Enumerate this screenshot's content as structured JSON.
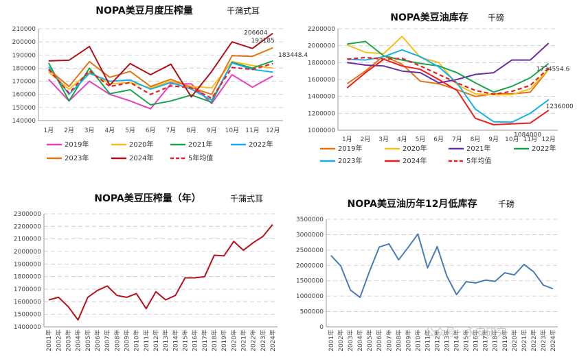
{
  "colors": {
    "y2019": "#e83ebf",
    "y2020": "#f7be1a",
    "y2021": "#1aa44a",
    "y2022": "#16b0e6",
    "y2023": "#e27516",
    "y2024": "#b0101a",
    "avg": "#e8202a",
    "purple": "#6a2ea0",
    "red": "#ee1c1c",
    "blue": "#4a7bb4",
    "darkred": "#b8101a"
  },
  "watermark": "公众号 · 永安研究",
  "chart_data": [
    {
      "type": "line",
      "title": "NOPA美豆月度压榨量",
      "unit": "千蒲式耳",
      "categories": [
        "1月",
        "2月",
        "3月",
        "4月",
        "5月",
        "6月",
        "7月",
        "8月",
        "9月",
        "10月",
        "11月",
        "12月"
      ],
      "ylim": [
        140000,
        210000
      ],
      "yticks": [
        140000,
        150000,
        160000,
        170000,
        180000,
        190000,
        200000,
        210000
      ],
      "series": [
        {
          "name": "2019年",
          "color": "y2019",
          "dash": false,
          "values": [
            171500,
            155000,
            170000,
            160000,
            155000,
            149000,
            168000,
            168000,
            153000,
            175000,
            165500,
            174000
          ]
        },
        {
          "name": "2020年",
          "color": "y2020",
          "dash": false,
          "values": [
            177000,
            164000,
            177000,
            168000,
            169000,
            165000,
            170000,
            166000,
            165000,
            185000,
            182000,
            180000
          ]
        },
        {
          "name": "2021年",
          "color": "y2021",
          "dash": false,
          "values": [
            184000,
            155000,
            180000,
            160500,
            163500,
            152000,
            155000,
            159500,
            154000,
            184500,
            180000,
            185500
          ]
        },
        {
          "name": "2022年",
          "color": "y2022",
          "dash": false,
          "values": [
            181000,
            160000,
            176000,
            170000,
            171000,
            164000,
            169000,
            164000,
            155500,
            184000,
            179000,
            177000
          ]
        },
        {
          "name": "2023年",
          "color": "y2023",
          "dash": false,
          "values": [
            179000,
            166000,
            185000,
            173000,
            177500,
            166000,
            171500,
            165000,
            160000,
            189500,
            189000,
            195500
          ]
        },
        {
          "name": "2024年",
          "color": "y2024",
          "dash": false,
          "values": [
            185500,
            186000,
            196500,
            167000,
            183500,
            175000,
            183000,
            158000,
            177500,
            200000,
            195000,
            206604
          ]
        },
        {
          "name": "5年均值",
          "color": "avg",
          "dash": true,
          "values": [
            179000,
            161000,
            178000,
            166000,
            169000,
            160000,
            166500,
            165000,
            157000,
            180500,
            179000,
            183448.4
          ]
        }
      ],
      "data_labels": [
        "206604",
        "193185",
        "183448.4"
      ],
      "legend": [
        "2019年",
        "2020年",
        "2021年",
        "2022年",
        "2023年",
        "2024年",
        "5年均值"
      ]
    },
    {
      "type": "line",
      "title": "NOPA美豆油库存",
      "unit": "千磅",
      "categories": [
        "1月",
        "2月",
        "3月",
        "4月",
        "5月",
        "6月",
        "7月",
        "8月",
        "9月",
        "10月",
        "11月",
        "12月"
      ],
      "ylim": [
        1000000,
        2200000
      ],
      "yticks": [
        1000000,
        1200000,
        1400000,
        1600000,
        1800000,
        2000000,
        2200000
      ],
      "series": [
        {
          "name": "2019年",
          "color": "y2023",
          "dash": false,
          "values": [
            1550000,
            1700000,
            1880000,
            1780000,
            1580000,
            1550000,
            1480000,
            1400000,
            1430000,
            1430000,
            1450000,
            1720000
          ]
        },
        {
          "name": "2020年",
          "color": "y2020",
          "dash": false,
          "values": [
            2010000,
            1920000,
            1905000,
            2110000,
            1860000,
            1800000,
            1540000,
            1430000,
            1420000,
            1420000,
            1490000,
            1720000
          ]
        },
        {
          "name": "2021年",
          "color": "purple",
          "dash": false,
          "values": [
            1800000,
            1770000,
            1760000,
            1700000,
            1680000,
            1560000,
            1600000,
            1660000,
            1680000,
            1830000,
            1830000,
            2030000
          ]
        },
        {
          "name": "2022年",
          "color": "y2021",
          "dash": false,
          "values": [
            2020000,
            2050000,
            1880000,
            1830000,
            1790000,
            1760000,
            1680000,
            1560000,
            1450000,
            1520000,
            1620000,
            1790000
          ]
        },
        {
          "name": "2023年",
          "color": "y2022",
          "dash": false,
          "values": [
            1840000,
            1830000,
            1870000,
            1950000,
            1870000,
            1750000,
            1560000,
            1250000,
            1100000,
            1095000,
            1200000,
            1360000
          ]
        },
        {
          "name": "2024年",
          "color": "red",
          "dash": false,
          "values": [
            1500000,
            1680000,
            1840000,
            1760000,
            1720000,
            1600000,
            1470000,
            1140000,
            1065000,
            1075000,
            1084000,
            1236000
          ]
        },
        {
          "name": "5年均值",
          "color": "red",
          "dash": true,
          "values": [
            1840000,
            1860000,
            1840000,
            1850000,
            1760000,
            1660000,
            1560000,
            1470000,
            1425000,
            1460000,
            1530000,
            1734554.6
          ]
        }
      ],
      "data_labels": [
        "1734554.6",
        "1236000",
        "1084000"
      ],
      "legend": [
        "2019年",
        "2020年",
        "2021年",
        "2022年",
        "2023年",
        "2024年",
        "5年均值"
      ]
    },
    {
      "type": "line",
      "title": "NOPA美豆压榨量（年）",
      "unit": "千蒲式耳",
      "categories": [
        "2001年",
        "2002年",
        "2003年",
        "2004年",
        "2005年",
        "2006年",
        "2007年",
        "2008年",
        "2009年",
        "2010年",
        "2011年",
        "2012年",
        "2013年",
        "2014年",
        "2015年",
        "2016年",
        "2017年",
        "2018年",
        "2019年",
        "2020年",
        "2021年",
        "2022年",
        "2023年",
        "2024年"
      ],
      "ylim": [
        1400000,
        2300000
      ],
      "yticks": [
        1400000,
        1500000,
        1600000,
        1700000,
        1800000,
        1900000,
        2000000,
        2100000,
        2200000,
        2300000
      ],
      "series": [
        {
          "name": "年压榨量",
          "color": "darkred",
          "dash": false,
          "values": [
            1615000,
            1635000,
            1560000,
            1455000,
            1635000,
            1690000,
            1725000,
            1650000,
            1635000,
            1665000,
            1545000,
            1680000,
            1615000,
            1650000,
            1790000,
            1790000,
            1800000,
            1970000,
            1965000,
            2080000,
            2010000,
            2070000,
            2120000,
            2215000
          ]
        }
      ]
    },
    {
      "type": "line",
      "title": "NOPA美豆油历年12月低库存",
      "unit": "千磅",
      "categories": [
        "2001年",
        "2002年",
        "2003年",
        "2004年",
        "2005年",
        "2006年",
        "2007年",
        "2008年",
        "2009年",
        "2010年",
        "2011年",
        "2012年",
        "2013年",
        "2014年",
        "2015年",
        "2016年",
        "2017年",
        "2018年",
        "2019年",
        "2020年",
        "2021年",
        "2022年",
        "2023年",
        "2024年"
      ],
      "ylim": [
        0,
        3500000
      ],
      "yticks": [
        0,
        500000,
        1000000,
        1500000,
        2000000,
        2500000,
        3000000,
        3500000
      ],
      "series": [
        {
          "name": "12月库存",
          "color": "blue",
          "dash": false,
          "values": [
            2320000,
            1980000,
            1200000,
            960000,
            1820000,
            2600000,
            2700000,
            2180000,
            2590000,
            3020000,
            1920000,
            2610000,
            1650000,
            1050000,
            1470000,
            1430000,
            1520000,
            1480000,
            1760000,
            1690000,
            2030000,
            1790000,
            1360000,
            1240000
          ]
        }
      ]
    }
  ]
}
